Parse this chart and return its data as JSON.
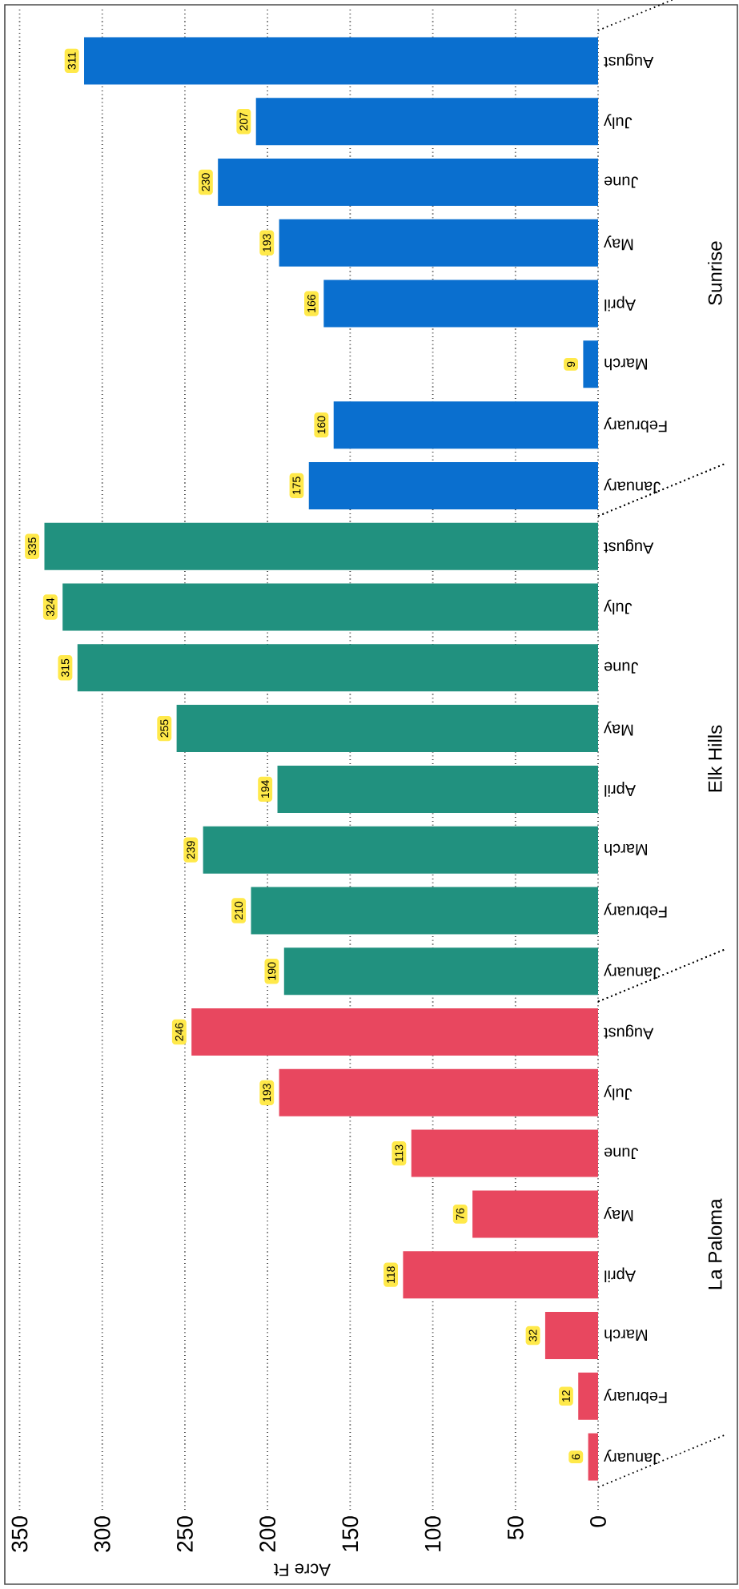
{
  "chart_data": {
    "type": "bar",
    "orientation": "horizontal",
    "xlabel": "Acre Ft",
    "categories": [
      "August",
      "July",
      "June",
      "May",
      "April",
      "March",
      "February",
      "January",
      "August",
      "July",
      "June",
      "May",
      "April",
      "March",
      "February",
      "January",
      "August",
      "July",
      "June",
      "May",
      "April",
      "March",
      "February",
      "January"
    ],
    "series": [
      {
        "name": "Sunrise",
        "color": "#0a6fcf",
        "values": [
          311,
          207,
          230,
          193,
          166,
          9,
          160,
          175,
          null,
          null,
          null,
          null,
          null,
          null,
          null,
          null,
          null,
          null,
          null,
          null,
          null,
          null,
          null,
          null
        ]
      },
      {
        "name": "Elk Hills",
        "color": "#21917f",
        "values": [
          null,
          null,
          null,
          null,
          null,
          null,
          null,
          null,
          335,
          324,
          315,
          255,
          194,
          239,
          210,
          190,
          null,
          null,
          null,
          null,
          null,
          null,
          null,
          null
        ]
      },
      {
        "name": "La Paloma",
        "color": "#e8475f",
        "values": [
          null,
          null,
          null,
          null,
          null,
          null,
          null,
          null,
          null,
          null,
          null,
          null,
          null,
          null,
          null,
          null,
          246,
          193,
          113,
          76,
          118,
          32,
          12,
          6
        ]
      }
    ],
    "xlim": [
      358,
      0
    ],
    "xticks": [
      350,
      300,
      250,
      200,
      150,
      100,
      50,
      0
    ],
    "grid": "x",
    "data_labels": true
  }
}
